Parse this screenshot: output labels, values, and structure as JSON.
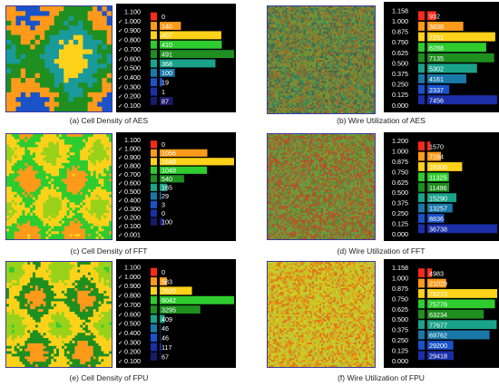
{
  "palette": [
    "#ff2a1a",
    "#ff9a1a",
    "#ffd21a",
    "#2ecc2e",
    "#1f8f1f",
    "#1aa38a",
    "#1a78a8",
    "#1a52c8",
    "#1a2fa8",
    "#1a1a6a"
  ],
  "chart_data": [
    {
      "type": "heatmap",
      "caption": "(a) Cell Density of AES",
      "legend_levels": [
        "1.100",
        "1.000",
        "0.900",
        "0.800",
        "0.700",
        "0.600",
        "0.500",
        "0.400",
        "0.300",
        "0.200",
        "0.100"
      ],
      "counts": [
        0,
        140,
        407,
        410,
        491,
        368,
        100,
        19,
        1,
        87
      ],
      "checkmarks": true
    },
    {
      "type": "heatmap",
      "caption": "(b) Wire Utilization of AES",
      "legend_levels": [
        "1.158",
        "1.000",
        "0.875",
        "0.750",
        "0.625",
        "0.500",
        "0.375",
        "0.250",
        "0.125",
        "0.000"
      ],
      "counts": [
        932,
        3838,
        7251,
        6288,
        7135,
        5302,
        4161,
        2337,
        7456
      ],
      "checkmarks": false
    },
    {
      "type": "heatmap",
      "caption": "(c) Cell Density of FFT",
      "legend_levels": [
        "1.100",
        "1.000",
        "0.900",
        "0.800",
        "0.700",
        "0.600",
        "0.500",
        "0.400",
        "0.300",
        "0.200",
        "0.100",
        "0.001"
      ],
      "counts": [
        0,
        1056,
        1648,
        1048,
        540,
        165,
        29,
        3,
        0,
        100
      ],
      "checkmarks": true
    },
    {
      "type": "heatmap",
      "caption": "(d) Wire Utilization of FFT",
      "legend_levels": [
        "1.200",
        "1.000",
        "0.875",
        "0.750",
        "0.625",
        "0.500",
        "0.375",
        "0.250",
        "0.125",
        "0.000"
      ],
      "counts": [
        1570,
        7184,
        18306,
        11325,
        11496,
        15290,
        13257,
        8836,
        36738
      ],
      "checkmarks": false
    },
    {
      "type": "heatmap",
      "caption": "(e) Cell Density of FPU",
      "legend_levels": [
        "1.100",
        "1.000",
        "0.900",
        "0.800",
        "0.700",
        "0.600",
        "0.500",
        "0.400",
        "0.300",
        "0.200",
        "0.100"
      ],
      "counts": [
        0,
        583,
        2620,
        6042,
        3295,
        409,
        46,
        46,
        117,
        67
      ],
      "checkmarks": true
    },
    {
      "type": "heatmap",
      "caption": "(f) Wire Utilization of FPU",
      "legend_levels": [
        "1.158",
        "1.000",
        "0.875",
        "0.750",
        "0.625",
        "0.500",
        "0.375",
        "0.250",
        "0.125",
        "0.000"
      ],
      "counts": [
        4983,
        21029,
        78273,
        75776,
        63234,
        77677,
        69762,
        29200,
        29418
      ],
      "checkmarks": false
    }
  ]
}
